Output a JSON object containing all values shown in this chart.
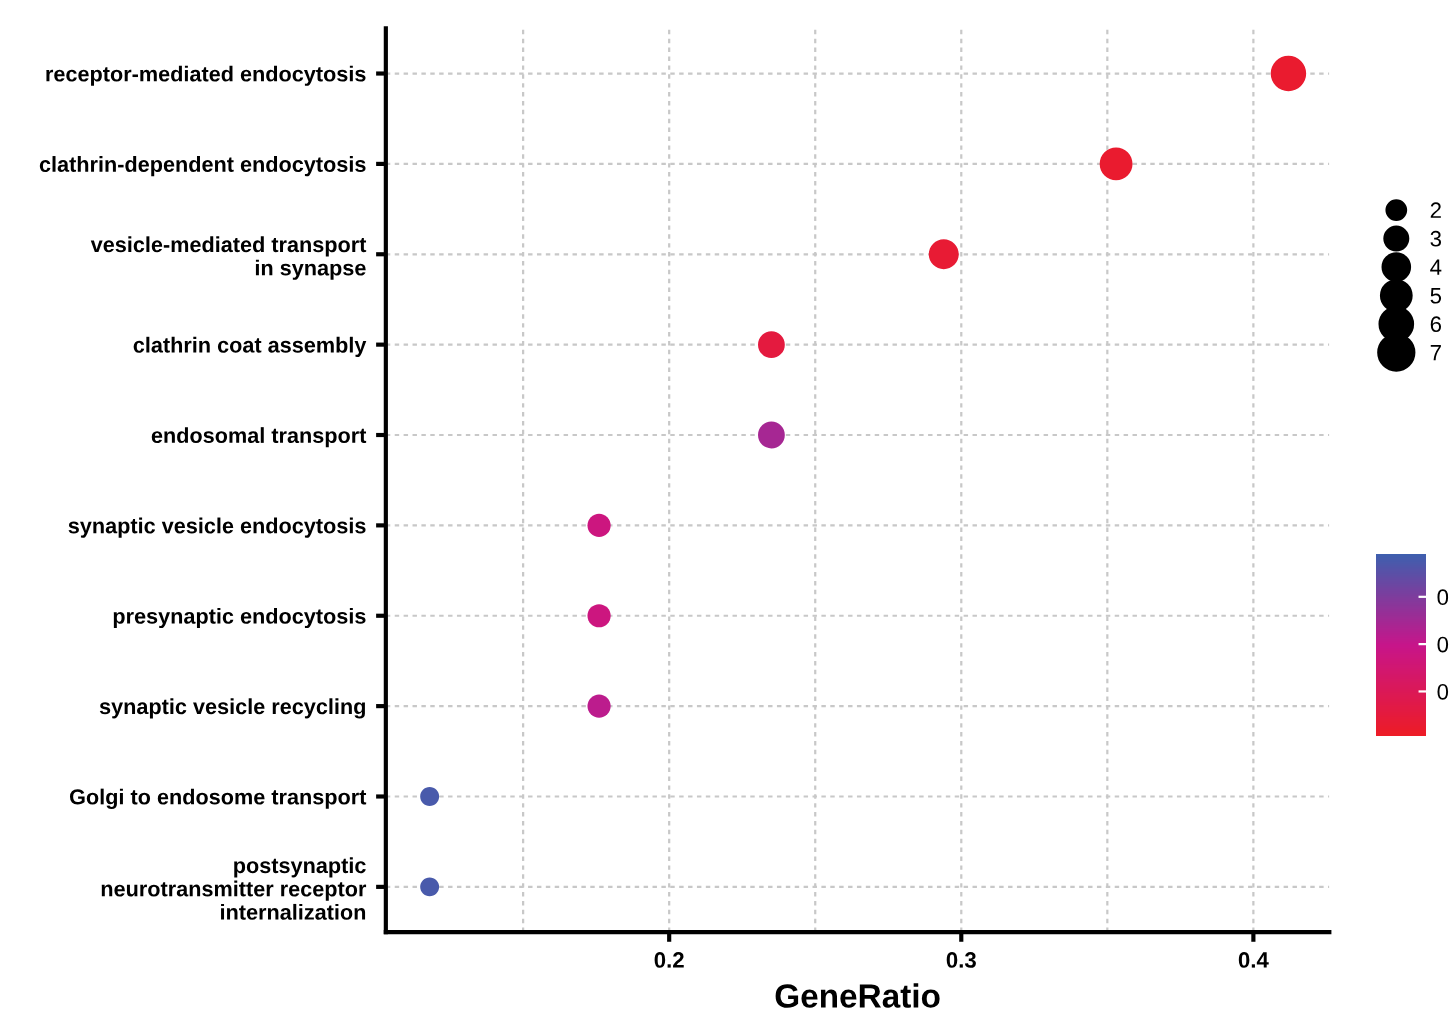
{
  "chart_data": {
    "type": "scatter",
    "xlabel": "GeneRatio",
    "categories": [
      "receptor-mediated endocytosis",
      "clathrin-dependent endocytosis",
      "vesicle-mediated transport\nin synapse",
      "clathrin coat assembly",
      "endosomal transport",
      "synaptic vesicle endocytosis",
      "presynaptic endocytosis",
      "synaptic vesicle recycling",
      "Golgi to endosome transport",
      "postsynaptic\nneurotransmitter receptor\ninternalization"
    ],
    "orientation": "horizontal",
    "values": [
      0.412,
      0.353,
      0.294,
      0.235,
      0.235,
      0.176,
      0.176,
      0.176,
      0.118,
      0.118
    ],
    "sizes": [
      7,
      6,
      5,
      4,
      4,
      3,
      3,
      3,
      2,
      2
    ],
    "size_legend": [
      2,
      3,
      4,
      5,
      6,
      7
    ],
    "cvalues": [
      0.002,
      0.002,
      0.003,
      0.005,
      0.024,
      0.017,
      0.017,
      0.021,
      0.037,
      0.037
    ],
    "clim": [
      0,
      0.0385
    ],
    "cticks": [
      {
        "value": 0.01,
        "label": "0"
      },
      {
        "value": 0.02,
        "label": "0"
      },
      {
        "value": 0.03,
        "label": "0"
      }
    ],
    "xlim": [
      0.103,
      0.426
    ],
    "xticks": [
      {
        "value": 0.15,
        "label": null
      },
      0.2,
      {
        "value": 0.25,
        "label": null
      },
      0.3,
      {
        "value": 0.35,
        "label": null
      },
      0.4
    ],
    "grid": true
  }
}
